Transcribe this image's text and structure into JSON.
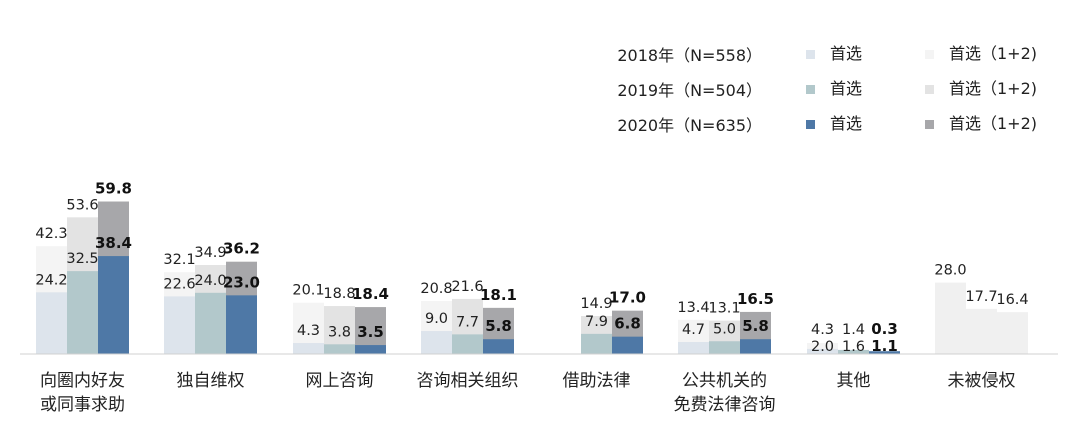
{
  "chart_data": {
    "type": "bar",
    "legend": {
      "rows": [
        {
          "year_label": "2018年（N=558）",
          "first_label": "首选",
          "combined_label": "首选（1+2)"
        },
        {
          "year_label": "2019年（N=504）",
          "first_label": "首选",
          "combined_label": "首选（1+2)"
        },
        {
          "year_label": "2020年（N=635）",
          "first_label": "首选",
          "combined_label": "首选（1+2)"
        }
      ]
    },
    "colors": {
      "first": [
        "#dde4ec",
        "#b2c8cb",
        "#4e78a6"
      ],
      "combined": [
        "#f4f4f4",
        "#e3e3e3",
        "#a7a7aa"
      ]
    },
    "categories": [
      {
        "lines": [
          "向圈内好友",
          "或同事求助"
        ],
        "first": [
          24.2,
          32.5,
          38.4
        ],
        "combined": [
          42.3,
          53.6,
          59.8
        ]
      },
      {
        "lines": [
          "独自维权"
        ],
        "first": [
          22.6,
          24.0,
          23.0
        ],
        "combined": [
          32.1,
          34.9,
          36.2
        ]
      },
      {
        "lines": [
          "网上咨询"
        ],
        "first": [
          4.3,
          3.8,
          3.5
        ],
        "combined": [
          20.1,
          18.8,
          18.4
        ]
      },
      {
        "lines": [
          "咨询相关组织"
        ],
        "first": [
          9.0,
          7.7,
          5.8
        ],
        "combined": [
          20.8,
          21.6,
          18.1
        ]
      },
      {
        "lines": [
          "借助法律"
        ],
        "first": [
          null,
          7.9,
          6.8
        ],
        "combined": [
          null,
          14.9,
          17.0
        ]
      },
      {
        "lines": [
          "公共机关的",
          "免费法律咨询"
        ],
        "first": [
          4.7,
          5.0,
          5.8
        ],
        "combined": [
          13.4,
          13.1,
          16.5
        ]
      },
      {
        "lines": [
          "其他"
        ],
        "first": [
          2.0,
          1.6,
          1.1
        ],
        "combined": [
          4.3,
          1.4,
          0.3
        ]
      },
      {
        "lines": [
          "未被侵权"
        ],
        "single": [
          28.0,
          17.7,
          16.4
        ]
      }
    ],
    "ylim": [
      0,
      60
    ]
  }
}
